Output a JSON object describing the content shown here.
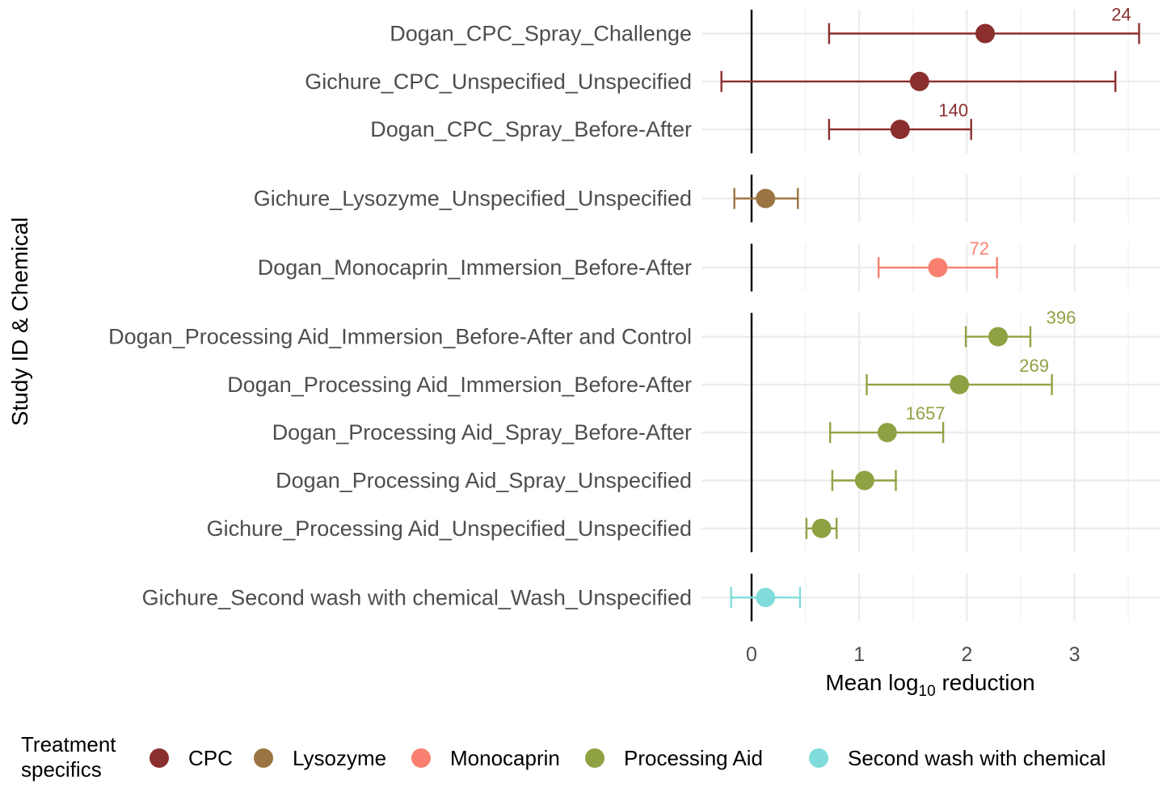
{
  "chart_data": {
    "type": "forest",
    "xlabel": "Mean log10 reduction",
    "xlabel_parts": {
      "before": "Mean log",
      "sub": "10",
      "after": " reduction"
    },
    "ylabel": "Study ID & Chemical",
    "xlim": [
      -0.45,
      3.65
    ],
    "x_ticks": [
      0,
      1,
      2,
      3
    ],
    "reference_line_x": 0,
    "grid": true,
    "legend": {
      "title_lines": [
        "Treatment",
        "specifics"
      ],
      "position": "bottom"
    },
    "groups": [
      {
        "name": "CPC",
        "color": "#8B2E2E"
      },
      {
        "name": "Lysozyme",
        "color": "#9A7442"
      },
      {
        "name": "Monocaprin",
        "color": "#F98070"
      },
      {
        "name": "Processing Aid",
        "color": "#8FA243"
      },
      {
        "name": "Second wash with chemical",
        "color": "#7FDCDA"
      }
    ],
    "panels": [
      {
        "group": "CPC",
        "rows": [
          {
            "label": "Dogan_CPC_Spray_Challenge",
            "mean": 2.17,
            "lower": 0.72,
            "upper": 3.6,
            "n": "24"
          },
          {
            "label": "Gichure_CPC_Unspecified_Unspecified",
            "mean": 1.56,
            "lower": -0.28,
            "upper": 3.38,
            "n": ""
          },
          {
            "label": "Dogan_CPC_Spray_Before-After",
            "mean": 1.38,
            "lower": 0.72,
            "upper": 2.04,
            "n": "140"
          }
        ]
      },
      {
        "group": "Lysozyme",
        "rows": [
          {
            "label": "Gichure_Lysozyme_Unspecified_Unspecified",
            "mean": 0.13,
            "lower": -0.16,
            "upper": 0.43,
            "n": ""
          }
        ]
      },
      {
        "group": "Monocaprin",
        "rows": [
          {
            "label": "Dogan_Monocaprin_Immersion_Before-After",
            "mean": 1.73,
            "lower": 1.18,
            "upper": 2.28,
            "n": "72"
          }
        ]
      },
      {
        "group": "Processing Aid",
        "rows": [
          {
            "label": "Dogan_Processing Aid_Immersion_Before-After and Control",
            "mean": 2.29,
            "lower": 1.99,
            "upper": 2.59,
            "n": "396"
          },
          {
            "label": "Dogan_Processing Aid_Immersion_Before-After",
            "mean": 1.93,
            "lower": 1.07,
            "upper": 2.79,
            "n": "269"
          },
          {
            "label": "Dogan_Processing Aid_Spray_Before-After",
            "mean": 1.26,
            "lower": 0.73,
            "upper": 1.78,
            "n": "1657"
          },
          {
            "label": "Dogan_Processing Aid_Spray_Unspecified",
            "mean": 1.05,
            "lower": 0.75,
            "upper": 1.34,
            "n": ""
          },
          {
            "label": "Gichure_Processing Aid_Unspecified_Unspecified",
            "mean": 0.65,
            "lower": 0.51,
            "upper": 0.79,
            "n": ""
          }
        ]
      },
      {
        "group": "Second wash with chemical",
        "rows": [
          {
            "label": "Gichure_Second wash with chemical_Wash_Unspecified",
            "mean": 0.13,
            "lower": -0.19,
            "upper": 0.45,
            "n": ""
          }
        ]
      }
    ]
  }
}
